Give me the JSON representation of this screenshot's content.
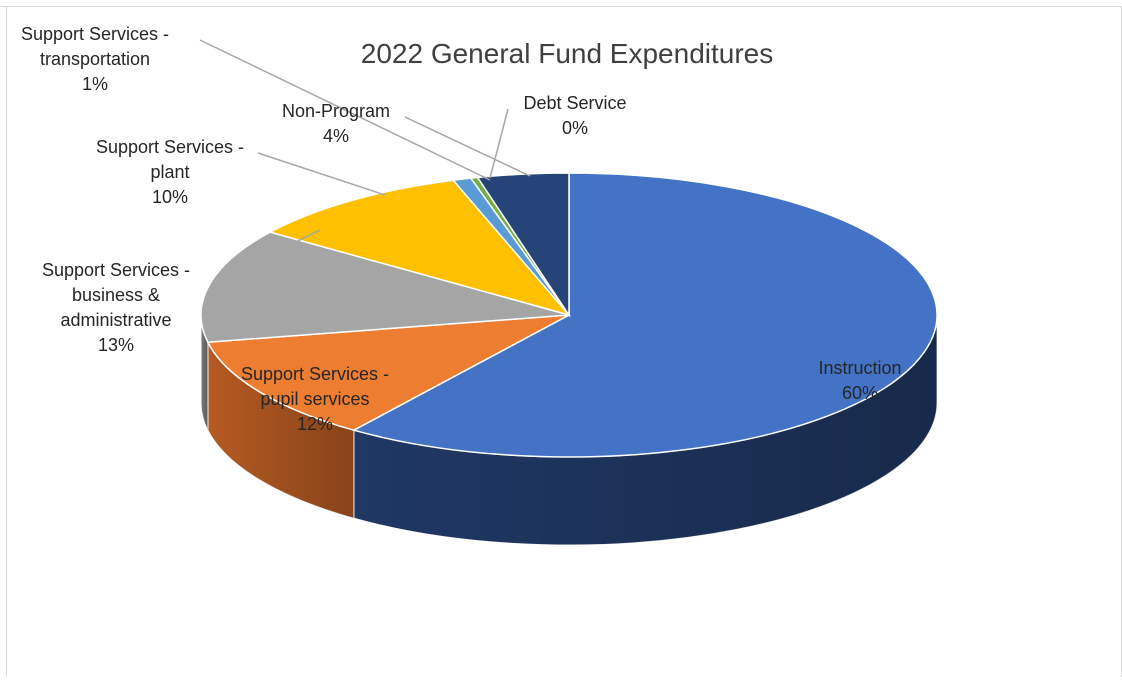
{
  "chart_data": {
    "type": "pie",
    "title": "2022 General Fund Expenditures",
    "slices": [
      {
        "label_lines": [
          "Instruction"
        ],
        "pct_label": "60%",
        "value": 60.0,
        "color": "#4472C4",
        "side_color": "#1F3864"
      },
      {
        "label_lines": [
          "Support Services -",
          "pupil services"
        ],
        "pct_label": "12%",
        "value": 12.0,
        "color": "#ED7D31",
        "side_color": "#B55A22"
      },
      {
        "label_lines": [
          "Support Services -",
          "business &",
          "administrative"
        ],
        "pct_label": "13%",
        "value": 13.0,
        "color": "#A5A5A5",
        "side_color": "#7A7A7A"
      },
      {
        "label_lines": [
          "Support Services -",
          "plant"
        ],
        "pct_label": "10%",
        "value": 10.0,
        "color": "#FFC000",
        "side_color": "#BF9000"
      },
      {
        "label_lines": [
          "Support Services -",
          "transportation"
        ],
        "pct_label": "1%",
        "value": 0.8,
        "color": "#5B9BD5",
        "side_color": "#2E75B6"
      },
      {
        "label_lines": [
          "Debt Service"
        ],
        "pct_label": "0%",
        "value": 0.3,
        "color": "#70AD47",
        "side_color": "#4E7A31"
      },
      {
        "label_lines": [
          "Non-Program"
        ],
        "pct_label": "4%",
        "value": 4.0,
        "color": "#264478",
        "side_color": "#172B4D"
      }
    ],
    "data_labels": "category name and percentage",
    "legend": "none",
    "style": "3-D pie"
  }
}
